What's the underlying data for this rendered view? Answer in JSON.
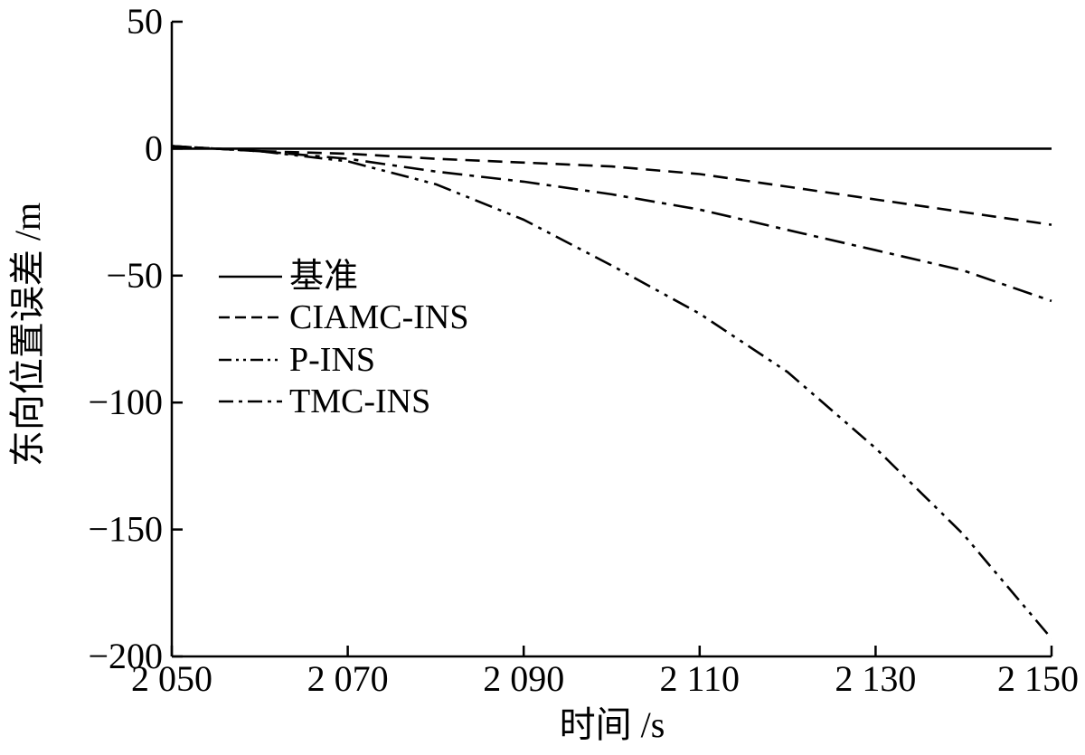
{
  "chart_data": {
    "type": "line",
    "title": "",
    "xlabel": "时间 /s",
    "ylabel": "东向位置误差 /m",
    "xlim": [
      2050,
      2150
    ],
    "ylim": [
      -200,
      50
    ],
    "xticks": [
      {
        "value": 2050,
        "label": "2 050"
      },
      {
        "value": 2070,
        "label": "2 070"
      },
      {
        "value": 2090,
        "label": "2 090"
      },
      {
        "value": 2110,
        "label": "2 110"
      },
      {
        "value": 2130,
        "label": "2 130"
      },
      {
        "value": 2150,
        "label": "2 150"
      }
    ],
    "yticks": [
      {
        "value": 50,
        "label": "50"
      },
      {
        "value": 0,
        "label": "0"
      },
      {
        "value": -50,
        "label": "−50"
      },
      {
        "value": -100,
        "label": "−100"
      },
      {
        "value": -150,
        "label": "−150"
      },
      {
        "value": -200,
        "label": "−200"
      }
    ],
    "grid": false,
    "legend_position": "middle-left",
    "x": [
      2050,
      2055,
      2060,
      2070,
      2080,
      2090,
      2100,
      2110,
      2120,
      2130,
      2140,
      2150
    ],
    "series": [
      {
        "name": "基准",
        "style": "solid",
        "values": [
          0,
          0,
          0,
          0,
          0,
          0,
          0,
          0,
          0,
          0,
          0,
          0
        ]
      },
      {
        "name": "CIAMC-INS",
        "style": "dashed",
        "values": [
          1,
          0,
          -1,
          -2,
          -4,
          -5.5,
          -7,
          -10,
          -15,
          -20,
          -25,
          -30
        ]
      },
      {
        "name": "P-INS",
        "style": "dashdotdot",
        "values": [
          1,
          0,
          -1,
          -5,
          -14,
          -28,
          -46,
          -65,
          -88,
          -118,
          -152,
          -193
        ]
      },
      {
        "name": "TMC-INS",
        "style": "dashdot",
        "values": [
          1,
          0,
          -1,
          -4,
          -9,
          -13,
          -18,
          -24,
          -32,
          -40,
          -48,
          -60
        ]
      }
    ]
  }
}
